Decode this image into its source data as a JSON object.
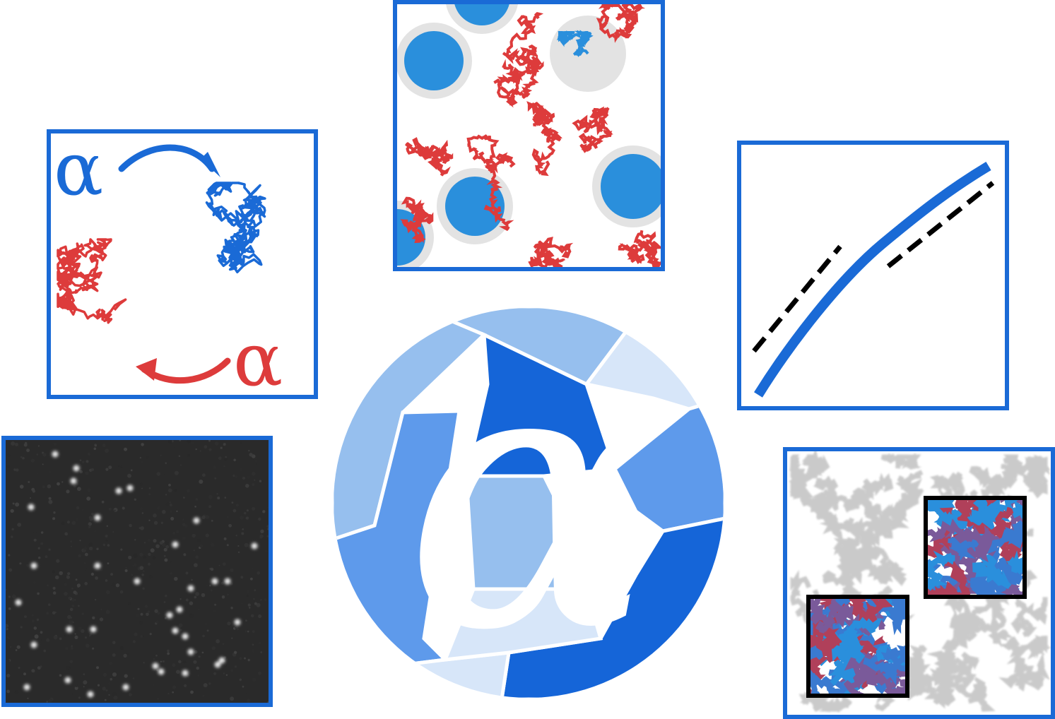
{
  "walks_panel": {
    "symbol_top": "α",
    "symbol_bottom": "α",
    "colors": {
      "walk_top": "#1a6ad6",
      "walk_bottom": "#dd3b3b"
    }
  },
  "traps_panel": {
    "colors": {
      "trapped": "#2a8fdc",
      "free": "#dd3b3b",
      "trap_halo": "#e3e3e3"
    }
  },
  "msd_panel": {
    "colors": {
      "curve": "#1a6ad6",
      "reference": "#000000"
    }
  },
  "micro_panel": {
    "colors": {
      "background": "#2a2a2a",
      "spots": "#e8e8e8"
    }
  },
  "maps_panel": {
    "colors": {
      "background_texture": "#9a9a9a",
      "inset_a": "#2a8fdc",
      "inset_b": "#b0405a",
      "inset_border": "#000000"
    }
  },
  "logo": {
    "symbol": "α",
    "colors": {
      "shade_1": "#96bfee",
      "shade_2": "#5e9aeb",
      "shade_3": "#1565d8",
      "shade_4": "#d7e6f9",
      "symbol": "#ffffff"
    }
  },
  "frame_color": "#1a6ad6"
}
